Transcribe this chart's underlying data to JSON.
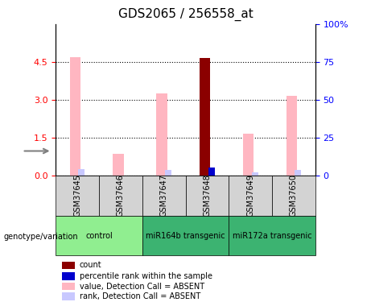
{
  "title": "GDS2065 / 256558_at",
  "samples": [
    "GSM37645",
    "GSM37646",
    "GSM37647",
    "GSM37648",
    "GSM37649",
    "GSM37650"
  ],
  "value_bars": [
    4.7,
    0.85,
    3.25,
    4.65,
    1.65,
    3.15
  ],
  "rank_bars": [
    0.25,
    0.0,
    0.22,
    0.3,
    0.12,
    0.22
  ],
  "count_bar_index": 3,
  "percentile_bar_index": 3,
  "ylim_left": [
    0,
    6
  ],
  "ylim_right": [
    0,
    100
  ],
  "yticks_left": [
    0,
    1.5,
    3.0,
    4.5
  ],
  "yticks_right": [
    0,
    25,
    50,
    75,
    100
  ],
  "bar_color_value": "#FFB6C1",
  "bar_color_rank": "#C8C8FF",
  "bar_color_count": "#8B0000",
  "bar_color_percentile": "#0000CD",
  "groups_info": [
    {
      "name": "control",
      "start": 0,
      "end": 2,
      "color": "#90EE90"
    },
    {
      "name": "miR164b transgenic",
      "start": 2,
      "end": 4,
      "color": "#3CB371"
    },
    {
      "name": "miR172a transgenic",
      "start": 4,
      "end": 6,
      "color": "#3CB371"
    }
  ],
  "legend_items": [
    {
      "color": "#8B0000",
      "label": "count"
    },
    {
      "color": "#0000CD",
      "label": "percentile rank within the sample"
    },
    {
      "color": "#FFB6C1",
      "label": "value, Detection Call = ABSENT"
    },
    {
      "color": "#C8C8FF",
      "label": "rank, Detection Call = ABSENT"
    }
  ]
}
